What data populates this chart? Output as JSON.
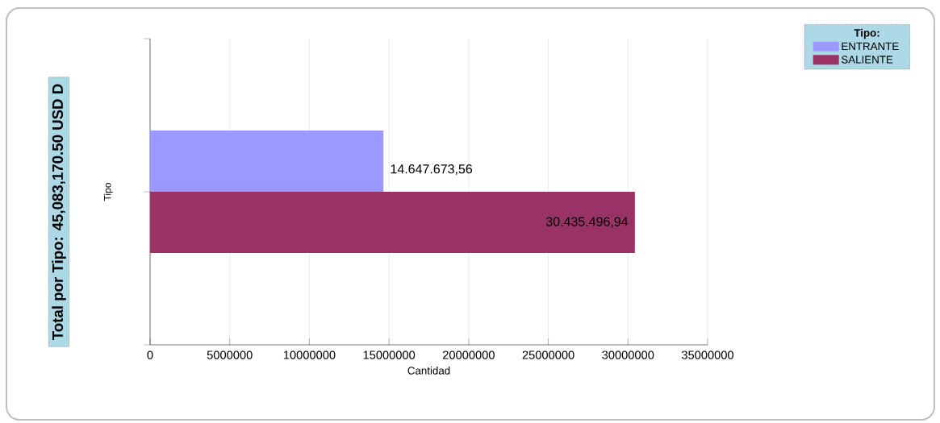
{
  "chart_data": {
    "type": "bar",
    "orientation": "horizontal",
    "title": "Total por Tipo: 45,083,170.50 USD D",
    "xlabel": "Cantidad",
    "ylabel": "Tipo",
    "legend_title": "Tipo:",
    "categories": [
      null
    ],
    "series": [
      {
        "name": "ENTRANTE",
        "color": "#9999ff",
        "values": [
          14647673.56
        ],
        "value_labels": [
          "14.647.673,56"
        ]
      },
      {
        "name": "SALIENTE",
        "color": "#993366",
        "values": [
          30435496.94
        ],
        "value_labels": [
          "30.435.496,94"
        ]
      }
    ],
    "xlim": [
      0,
      35000000
    ],
    "xticks": [
      0,
      5000000,
      10000000,
      15000000,
      20000000,
      25000000,
      30000000,
      35000000
    ],
    "grid": "x",
    "legend": "top right"
  }
}
